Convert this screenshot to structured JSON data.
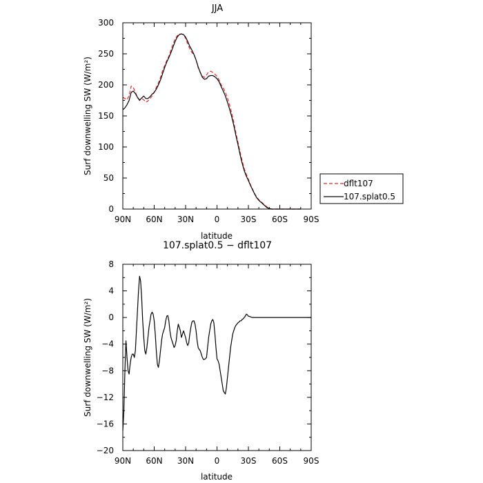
{
  "chart_data": [
    {
      "type": "line",
      "title": "JJA",
      "xlabel": "latitude",
      "ylabel": "Surf downwelling SW (W/m²)",
      "xlim": [
        90,
        -90
      ],
      "ylim": [
        0,
        300
      ],
      "x_tick_values": [
        90,
        60,
        30,
        0,
        -30,
        -60,
        -90
      ],
      "x_tick_labels": [
        "90N",
        "60N",
        "30N",
        "0",
        "30S",
        "60S",
        "90S"
      ],
      "y_tick_values": [
        0,
        50,
        100,
        150,
        200,
        250,
        300
      ],
      "y_tick_labels": [
        "0",
        "50",
        "100",
        "150",
        "200",
        "250",
        "300"
      ],
      "legend_position": "right, outside plot",
      "series": [
        {
          "name": "dflt107",
          "color": "#e8262a",
          "dash": "dashed",
          "x": [
            90,
            88,
            86,
            84,
            82,
            80,
            78,
            76,
            74,
            72,
            70,
            68,
            66,
            64,
            62,
            60,
            58,
            56,
            54,
            52,
            50,
            48,
            46,
            44,
            42,
            40,
            38,
            36,
            34,
            32,
            30,
            28,
            26,
            24,
            22,
            20,
            18,
            16,
            14,
            12,
            10,
            8,
            6,
            4,
            2,
            0,
            -2,
            -4,
            -6,
            -8,
            -10,
            -12,
            -14,
            -16,
            -18,
            -20,
            -22,
            -24,
            -26,
            -28,
            -30,
            -32,
            -34,
            -36,
            -38,
            -40,
            -42,
            -44,
            -46,
            -48,
            -50,
            -52,
            -54,
            -56,
            -58,
            -60,
            -62,
            -64,
            -66,
            -68,
            -70,
            -72,
            -74,
            -76,
            -78,
            -80
          ],
          "values": [
            180,
            178,
            176,
            183,
            198,
            196,
            188,
            180,
            176,
            178,
            176,
            172,
            174,
            178,
            182,
            188,
            196,
            203,
            212,
            223,
            231,
            239,
            246,
            256,
            266,
            274,
            279,
            282,
            282,
            281,
            275,
            266,
            258,
            252,
            249,
            240,
            228,
            220,
            214,
            212,
            216,
            221,
            222,
            220,
            217,
            214,
            208,
            200,
            195,
            188,
            179,
            168,
            155,
            140,
            123,
            108,
            92,
            78,
            65,
            56,
            48,
            39,
            32,
            25,
            19,
            15,
            12,
            9,
            6,
            3,
            1,
            0,
            0,
            0,
            0,
            0,
            0,
            0,
            0,
            0,
            0,
            0,
            0,
            0,
            0,
            0
          ]
        },
        {
          "name": "107.splat0.5",
          "color": "#000000",
          "dash": "solid",
          "x": [
            90,
            88,
            86,
            84,
            82,
            80,
            78,
            76,
            74,
            72,
            70,
            68,
            66,
            64,
            62,
            60,
            58,
            56,
            54,
            52,
            50,
            48,
            46,
            44,
            42,
            40,
            38,
            36,
            34,
            32,
            30,
            28,
            26,
            24,
            22,
            20,
            18,
            16,
            14,
            12,
            10,
            8,
            6,
            4,
            2,
            0,
            -2,
            -4,
            -6,
            -8,
            -10,
            -12,
            -14,
            -16,
            -18,
            -20,
            -22,
            -24,
            -26,
            -28,
            -30,
            -32,
            -34,
            -36,
            -38,
            -40,
            -42,
            -44,
            -46,
            -48,
            -50,
            -52,
            -54,
            -56,
            -58,
            -60,
            -62,
            -64,
            -66,
            -68,
            -70,
            -72,
            -74,
            -76,
            -78,
            -80
          ],
          "values": [
            160,
            163,
            168,
            175,
            188,
            190,
            186,
            180,
            175,
            179,
            182,
            178,
            178,
            181,
            185,
            188,
            193,
            200,
            208,
            218,
            228,
            237,
            244,
            252,
            261,
            270,
            277,
            281,
            282,
            281,
            277,
            270,
            262,
            256,
            249,
            240,
            229,
            220,
            212,
            209,
            210,
            214,
            215,
            215,
            213,
            210,
            205,
            197,
            190,
            182,
            172,
            161,
            149,
            135,
            119,
            104,
            88,
            74,
            62,
            53,
            46,
            38,
            31,
            24,
            18,
            14,
            11,
            8,
            5,
            2,
            1,
            0,
            0,
            0,
            0,
            0,
            0,
            0,
            0,
            0,
            0,
            0,
            0,
            0,
            0,
            0
          ]
        }
      ]
    },
    {
      "type": "line",
      "title": "107.splat0.5 − dflt107",
      "xlabel": "latitude",
      "ylabel": "Surf downwelling SW (W/m²)",
      "xlim": [
        90,
        -90
      ],
      "ylim": [
        -20,
        8
      ],
      "x_tick_values": [
        90,
        60,
        30,
        0,
        -30,
        -60,
        -90
      ],
      "x_tick_labels": [
        "90N",
        "60N",
        "30N",
        "0",
        "30S",
        "60S",
        "90S"
      ],
      "y_tick_values": [
        8,
        4,
        0,
        -4,
        -8,
        -12,
        -16,
        -20
      ],
      "y_tick_labels": [
        "8",
        "4",
        "0",
        "−4",
        "−8",
        "−12",
        "−16",
        "−20"
      ],
      "series": [
        {
          "color": "#000000",
          "dash": "solid",
          "x": [
            90,
            89,
            88,
            87,
            86,
            85,
            84,
            83,
            82,
            81,
            80,
            79,
            78,
            77,
            76,
            75,
            74,
            73,
            72,
            71,
            70,
            69,
            68,
            67,
            66,
            65,
            64,
            63,
            62,
            61,
            60,
            59,
            58,
            57,
            56,
            55,
            54,
            53,
            52,
            51,
            50,
            49,
            48,
            47,
            46,
            45,
            44,
            43,
            42,
            41,
            40,
            39,
            38,
            37,
            36,
            35,
            34,
            33,
            32,
            31,
            30,
            29,
            28,
            27,
            26,
            25,
            24,
            23,
            22,
            21,
            20,
            19,
            18,
            17,
            16,
            15,
            14,
            13,
            12,
            11,
            10,
            9,
            8,
            7,
            6,
            5,
            4,
            3,
            2,
            1,
            0,
            -1,
            -2,
            -3,
            -4,
            -5,
            -6,
            -7,
            -8,
            -9,
            -10,
            -11,
            -12,
            -13,
            -14,
            -15,
            -16,
            -17,
            -18,
            -19,
            -20,
            -21,
            -22,
            -23,
            -24,
            -25,
            -26,
            -27,
            -28,
            -29,
            -30,
            -32,
            -34,
            -36,
            -38,
            -40,
            -42,
            -44,
            -46,
            -48,
            -50,
            -52,
            -54,
            -56,
            -58,
            -60,
            -62,
            -64,
            -66,
            -68,
            -70,
            -75,
            -80,
            -85,
            -90
          ],
          "values": [
            -17,
            -14,
            -8,
            -3.5,
            -6,
            -8,
            -8.5,
            -7,
            -6,
            -5.5,
            -5.5,
            -6,
            -5,
            -2,
            1,
            4,
            6.2,
            5.5,
            3,
            -0.5,
            -3,
            -5,
            -5.5,
            -4.5,
            -3,
            -1.5,
            -0.5,
            0.5,
            0.8,
            0.5,
            -0.5,
            -2.5,
            -5,
            -7,
            -7.5,
            -6.5,
            -5,
            -3.5,
            -2.5,
            -2,
            -1.5,
            -0.5,
            0.2,
            0.3,
            -0.5,
            -2,
            -3,
            -3.5,
            -4,
            -4.5,
            -4.2,
            -3.5,
            -2,
            -1,
            -1.5,
            -2,
            -3,
            -2.5,
            -2,
            -2.5,
            -3,
            -3.8,
            -4.2,
            -3.8,
            -2.5,
            -1.5,
            -0.7,
            -0.5,
            -0.5,
            -1,
            -2,
            -3.5,
            -4.5,
            -4.8,
            -5,
            -5.5,
            -6,
            -6.3,
            -6.3,
            -6.2,
            -6,
            -4.5,
            -3,
            -2,
            -1,
            -0.5,
            -0.3,
            -0.8,
            -2.5,
            -4.5,
            -6.2,
            -6.5,
            -7,
            -8,
            -9,
            -10,
            -11,
            -11.3,
            -11.5,
            -10.5,
            -9,
            -7.5,
            -6,
            -4.5,
            -3.5,
            -2.5,
            -2,
            -1.5,
            -1.2,
            -1,
            -0.8,
            -0.7,
            -0.5,
            -0.5,
            -0.3,
            -0.2,
            0,
            0.2,
            0.5,
            0.4,
            0.2,
            0.1,
            0,
            0,
            0,
            0,
            0,
            0,
            0,
            0,
            0,
            0,
            0,
            0,
            0,
            0,
            0,
            0,
            0,
            0,
            0,
            0,
            0,
            0,
            0
          ]
        }
      ]
    }
  ]
}
